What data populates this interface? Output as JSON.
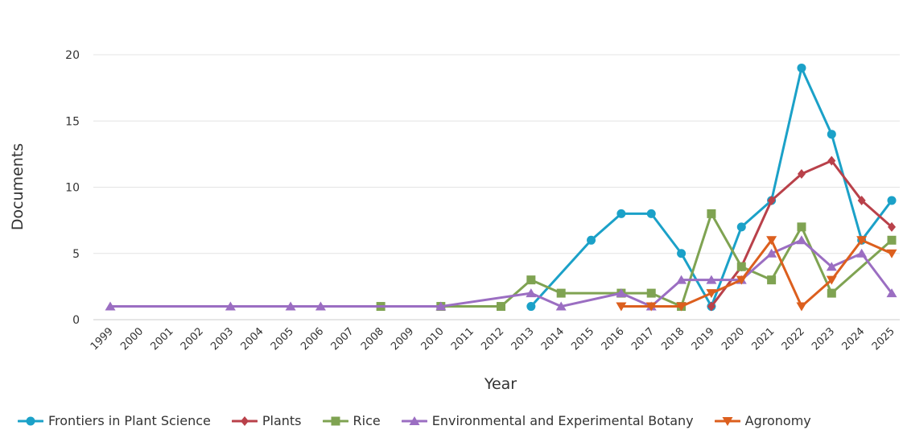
{
  "chart_data": {
    "type": "line",
    "title": "",
    "xlabel": "Year",
    "ylabel": "Documents",
    "categories": [
      "1999",
      "2000",
      "2001",
      "2002",
      "2003",
      "2004",
      "2005",
      "2006",
      "2007",
      "2008",
      "2009",
      "2010",
      "2011",
      "2012",
      "2013",
      "2014",
      "2015",
      "2016",
      "2017",
      "2018",
      "2019",
      "2020",
      "2021",
      "2022",
      "2023",
      "2024",
      "2025"
    ],
    "ylim": [
      0,
      20
    ],
    "yticks": [
      "0",
      "5",
      "10",
      "15",
      "20"
    ],
    "grid": true,
    "legend": "bottom",
    "series": [
      {
        "name": "Frontiers in Plant Science",
        "color": "#1ba1c8",
        "marker": "circle",
        "values": [
          null,
          null,
          null,
          null,
          null,
          null,
          null,
          null,
          null,
          null,
          null,
          null,
          null,
          null,
          1,
          null,
          6,
          8,
          8,
          5,
          1,
          7,
          9,
          19,
          14,
          6,
          9
        ]
      },
      {
        "name": "Plants",
        "color": "#b9414a",
        "marker": "diamond",
        "values": [
          null,
          null,
          null,
          null,
          null,
          null,
          null,
          null,
          null,
          null,
          null,
          null,
          null,
          null,
          null,
          null,
          null,
          null,
          null,
          null,
          1,
          4,
          9,
          11,
          12,
          9,
          7
        ]
      },
      {
        "name": "Rice",
        "color": "#7fa352",
        "marker": "square",
        "values": [
          null,
          null,
          null,
          null,
          null,
          null,
          null,
          null,
          null,
          1,
          null,
          1,
          null,
          1,
          3,
          2,
          null,
          2,
          2,
          1,
          8,
          4,
          3,
          7,
          2,
          null,
          6
        ]
      },
      {
        "name": "Environmental and Experimental Botany",
        "color": "#9b6ec2",
        "marker": "triangle-up",
        "values": [
          1,
          null,
          null,
          null,
          1,
          null,
          1,
          1,
          null,
          null,
          null,
          1,
          null,
          null,
          2,
          1,
          null,
          2,
          1,
          3,
          3,
          3,
          5,
          6,
          4,
          5,
          2
        ]
      },
      {
        "name": "Agronomy",
        "color": "#dc5f1e",
        "marker": "triangle-down",
        "values": [
          null,
          null,
          null,
          null,
          null,
          null,
          null,
          null,
          null,
          null,
          null,
          null,
          null,
          null,
          null,
          null,
          null,
          1,
          1,
          1,
          2,
          3,
          6,
          1,
          3,
          6,
          5
        ]
      }
    ]
  }
}
